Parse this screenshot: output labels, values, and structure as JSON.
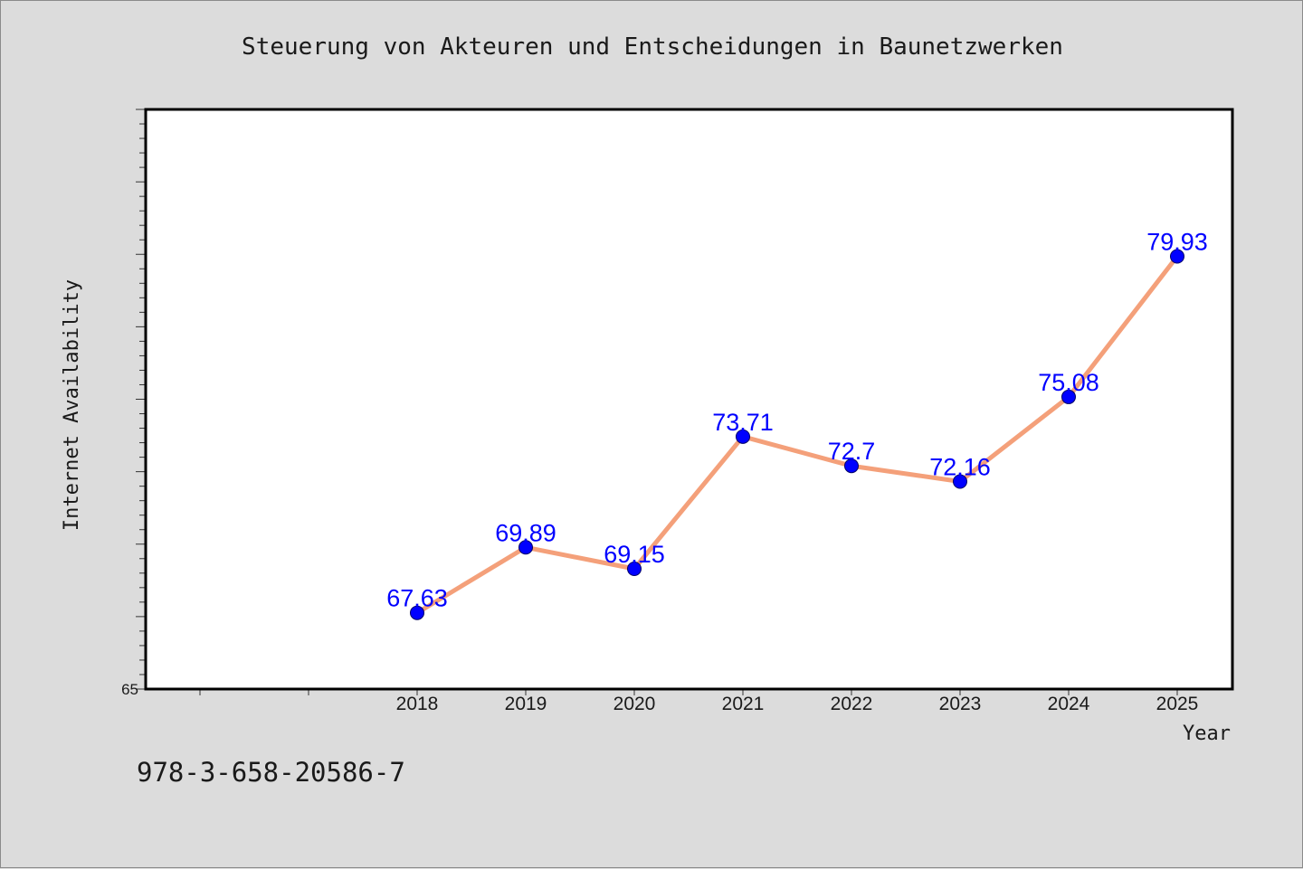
{
  "title": "Steuerung von Akteuren und Entscheidungen in Baunetzwerken",
  "footer_text": "978-3-658-20586-7",
  "chart_data": {
    "type": "line",
    "title": "Steuerung von Akteuren und Entscheidungen in Baunetzwerken",
    "xlabel": "Year",
    "ylabel": "Internet Availability",
    "x": [
      "2018",
      "2019",
      "2020",
      "2021",
      "2022",
      "2023",
      "2024",
      "2025"
    ],
    "series": [
      {
        "values": [
          67.63,
          69.89,
          69.15,
          73.71,
          72.7,
          72.16,
          75.08,
          79.93
        ],
        "labels": [
          "67.63",
          "69.89",
          "69.15",
          "73.71",
          "72.7",
          "72.16",
          "75.08",
          "79.93"
        ]
      }
    ],
    "ylim": [
      65,
      85
    ],
    "y_tick_labels": [
      "65"
    ],
    "grid": false,
    "line_color": "#f4a07a",
    "marker_color": "#0000ff",
    "label_color": "#0000ff"
  }
}
